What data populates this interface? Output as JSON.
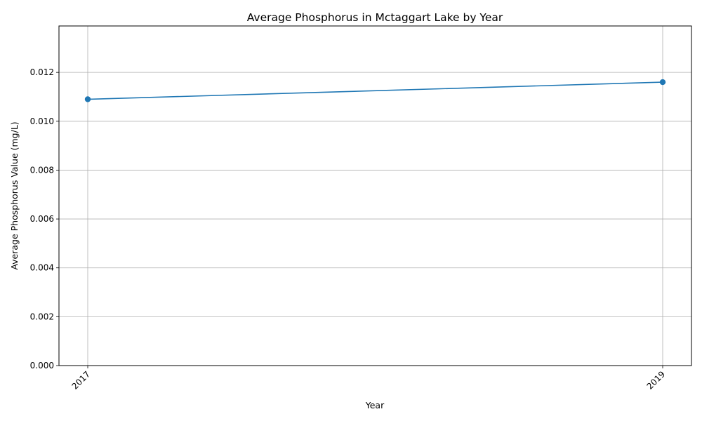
{
  "chart_data": {
    "type": "line",
    "title": "Average Phosphorus in Mctaggart Lake by Year",
    "xlabel": "Year",
    "ylabel": "Average Phosphorus Value (mg/L)",
    "x": [
      "2017",
      "2019"
    ],
    "series": [
      {
        "values": [
          0.0109,
          0.0116
        ]
      }
    ],
    "ylim": [
      0,
      0.0139
    ],
    "yticks": [
      "0.000",
      "0.002",
      "0.004",
      "0.006",
      "0.008",
      "0.010",
      "0.012"
    ],
    "grid": true,
    "line_color": "#1f77b4",
    "marker": "circle"
  }
}
